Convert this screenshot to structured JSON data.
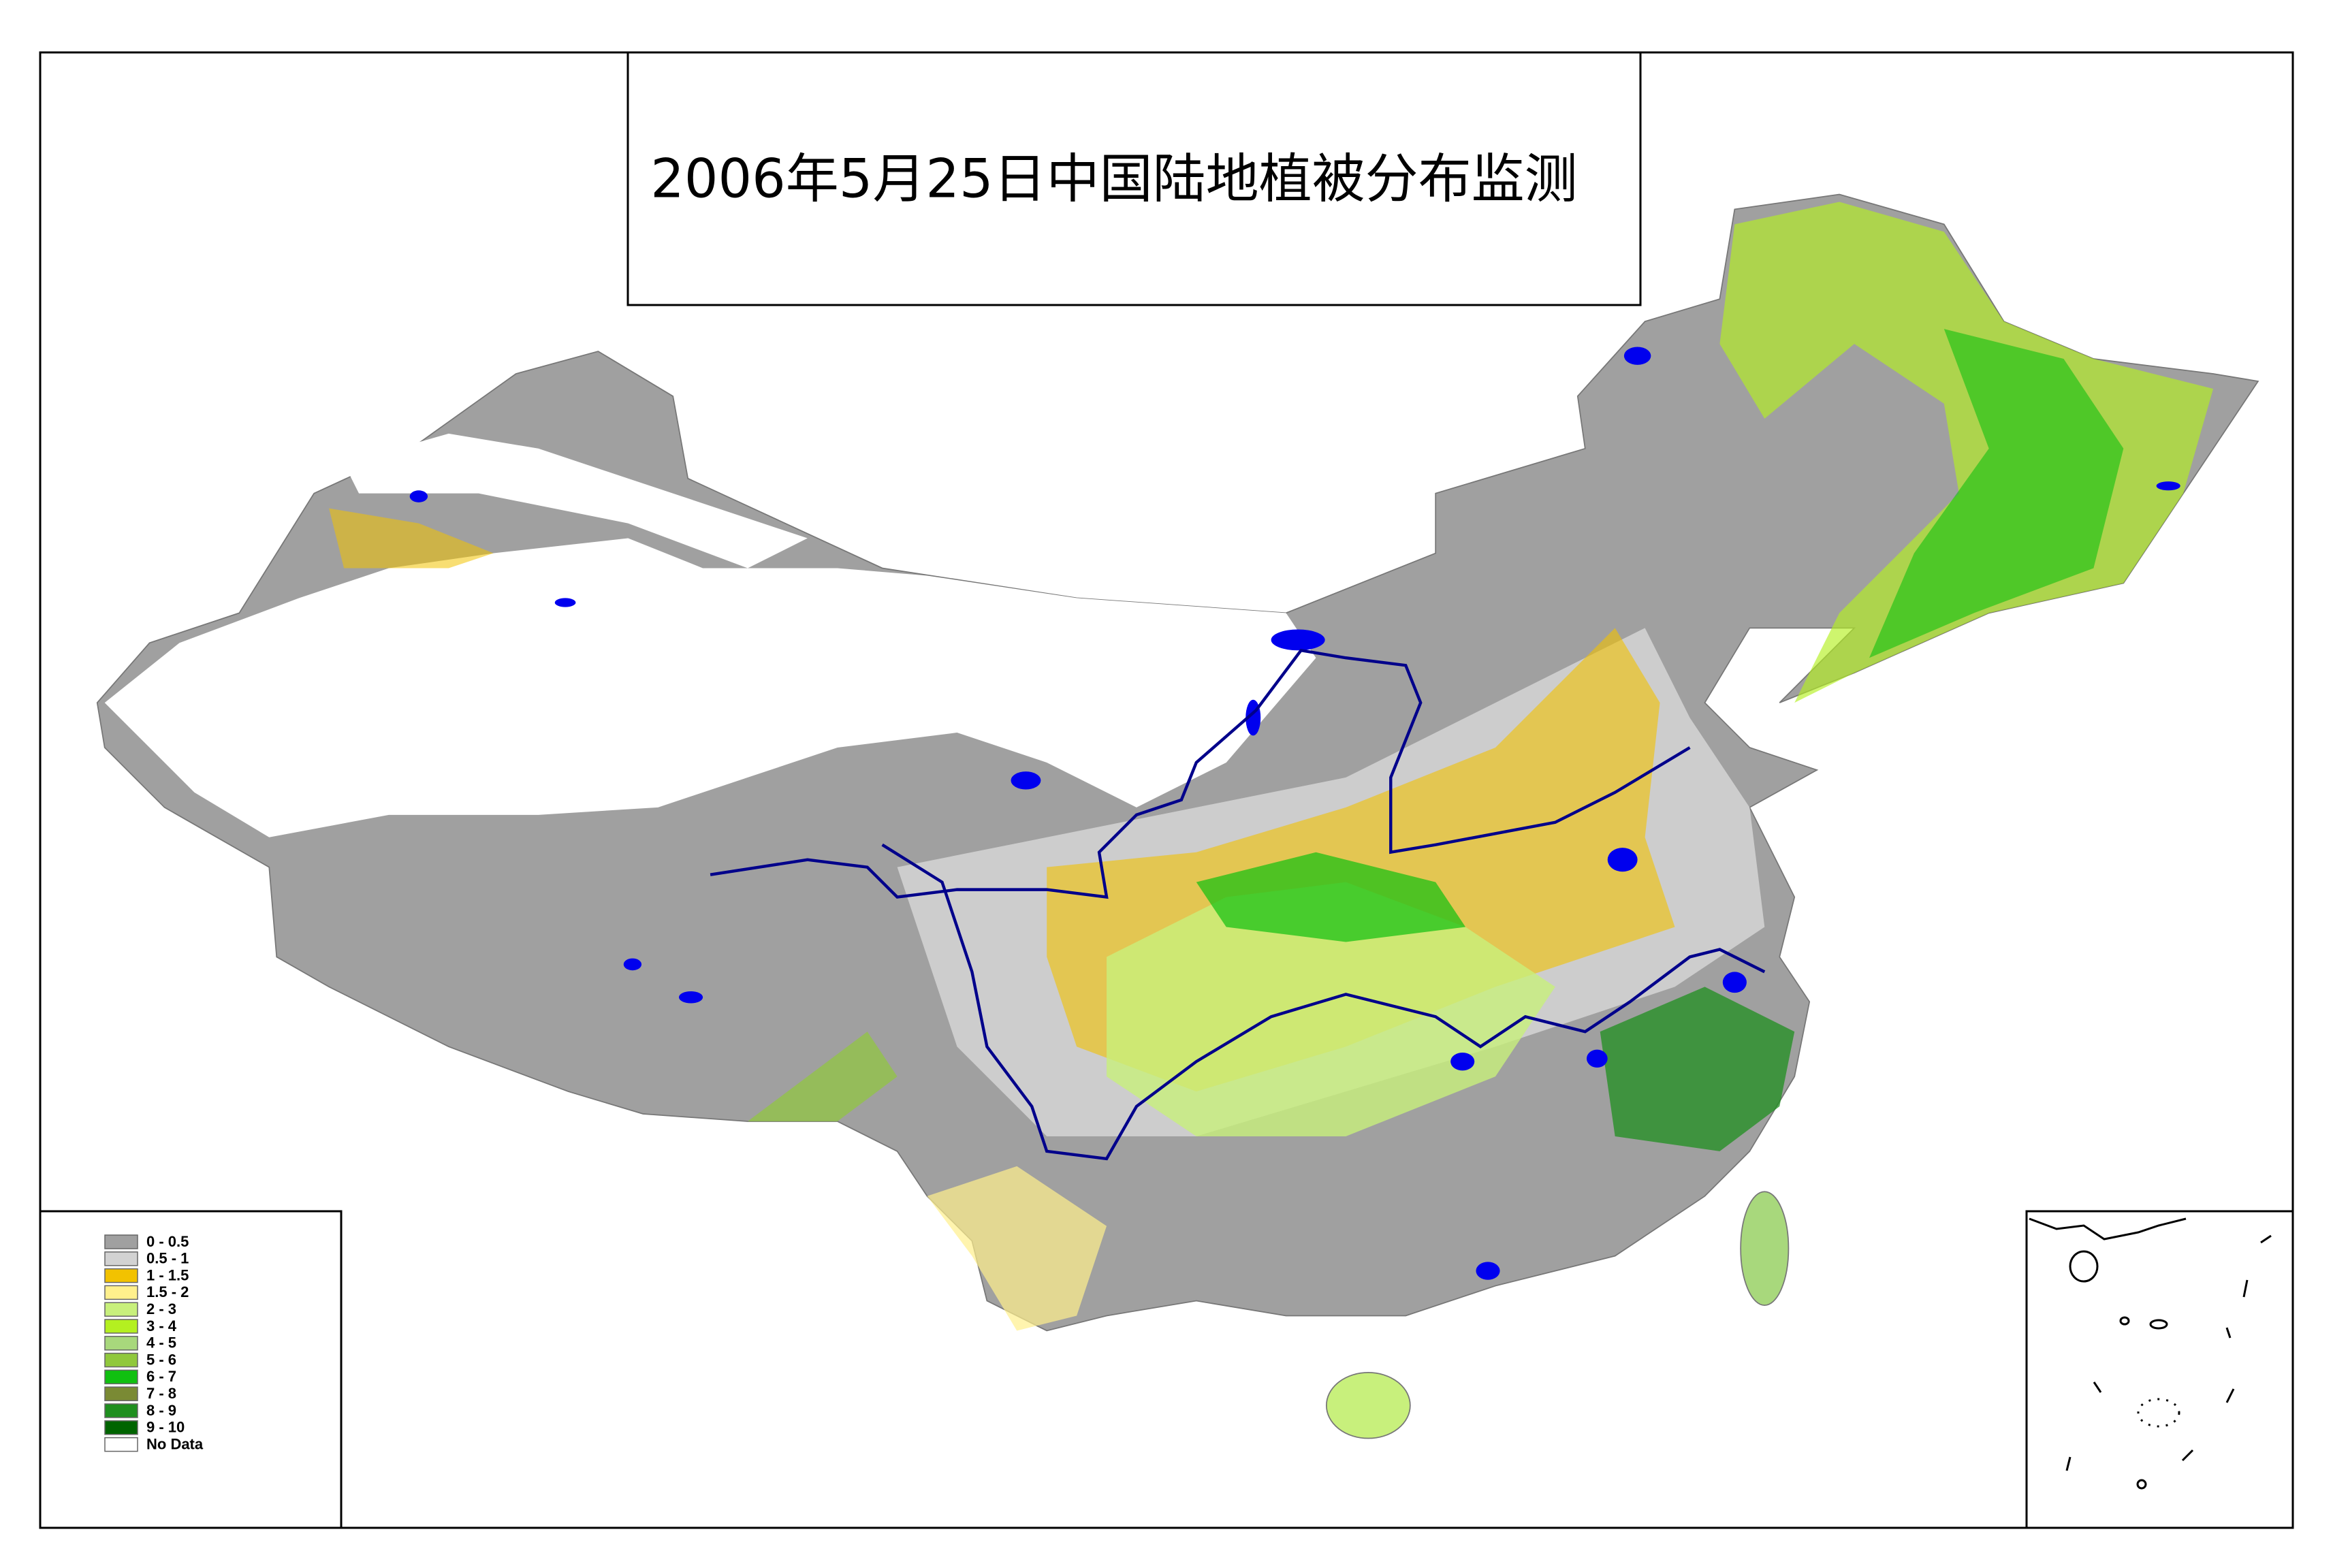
{
  "title": "2006年5月25日中国陆地植被分布监测",
  "legend": {
    "items": [
      {
        "label": "0 - 0.5",
        "color": "#a0a0a0"
      },
      {
        "label": "0.5 - 1",
        "color": "#d2d2d2"
      },
      {
        "label": "1 - 1.5",
        "color": "#f2c200"
      },
      {
        "label": "1.5 - 2",
        "color": "#fff08c"
      },
      {
        "label": "2 - 3",
        "color": "#c8f07c"
      },
      {
        "label": "3 - 4",
        "color": "#b4f020"
      },
      {
        "label": "4 - 5",
        "color": "#a8d87c"
      },
      {
        "label": "5 - 6",
        "color": "#90c83c"
      },
      {
        "label": "6 - 7",
        "color": "#10c010"
      },
      {
        "label": "7 - 8",
        "color": "#7a8a34"
      },
      {
        "label": "8 - 9",
        "color": "#1f8f1f"
      },
      {
        "label": "9 - 10",
        "color": "#006400"
      },
      {
        "label": "No Data",
        "color": "#ffffff"
      }
    ]
  }
}
